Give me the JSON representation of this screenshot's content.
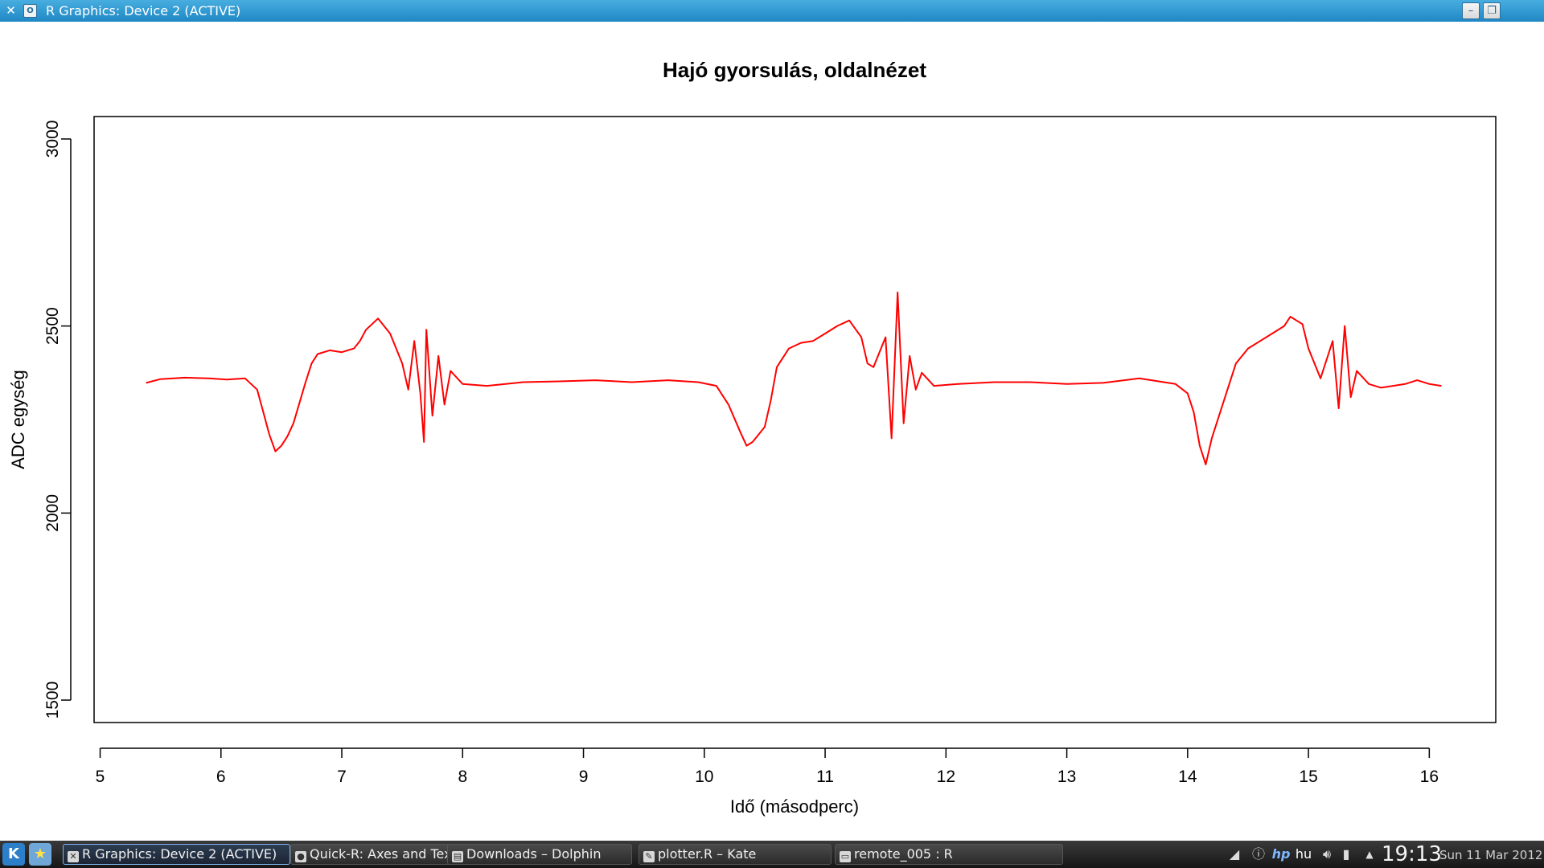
{
  "window": {
    "title": "R Graphics: Device 2 (ACTIVE)",
    "minimize_glyph": "–",
    "maximize_glyph": "❐",
    "menu_glyph": "O"
  },
  "chart_data": {
    "type": "line",
    "title": "Hajó gyorsulás, oldalnézet",
    "xlabel": "Idő (másodperc)",
    "ylabel": "ADC egység",
    "xlim": [
      4.95,
      16.55
    ],
    "ylim": [
      1440,
      3060
    ],
    "xticks": [
      5,
      6,
      7,
      8,
      9,
      10,
      11,
      12,
      13,
      14,
      15,
      16
    ],
    "yticks": [
      1500,
      2000,
      2500,
      3000
    ],
    "grid": false,
    "line_color": "#ff0000",
    "series": [
      {
        "x": [
          5.38,
          5.5,
          5.7,
          5.9,
          6.05,
          6.2,
          6.3,
          6.35,
          6.4,
          6.45,
          6.5,
          6.55,
          6.6,
          6.7,
          6.75,
          6.8,
          6.9,
          7.0,
          7.1,
          7.15,
          7.2,
          7.3,
          7.4,
          7.5,
          7.55,
          7.6,
          7.65,
          7.68,
          7.7,
          7.75,
          7.8,
          7.85,
          7.9,
          8.0,
          8.2,
          8.5,
          8.8,
          9.1,
          9.4,
          9.7,
          9.95,
          10.1,
          10.2,
          10.3,
          10.35,
          10.4,
          10.5,
          10.55,
          10.6,
          10.7,
          10.8,
          10.9,
          11.0,
          11.1,
          11.2,
          11.3,
          11.35,
          11.4,
          11.5,
          11.55,
          11.6,
          11.65,
          11.7,
          11.75,
          11.8,
          11.9,
          12.1,
          12.4,
          12.7,
          13.0,
          13.3,
          13.6,
          13.9,
          14.0,
          14.05,
          14.1,
          14.15,
          14.2,
          14.3,
          14.4,
          14.5,
          14.6,
          14.7,
          14.8,
          14.85,
          14.95,
          15.0,
          15.1,
          15.2,
          15.25,
          15.3,
          15.35,
          15.4,
          15.5,
          15.6,
          15.7,
          15.8,
          15.9,
          16.0,
          16.1
        ],
        "y": [
          2348,
          2358,
          2362,
          2360,
          2357,
          2360,
          2330,
          2270,
          2210,
          2165,
          2180,
          2205,
          2240,
          2350,
          2400,
          2425,
          2435,
          2430,
          2440,
          2460,
          2490,
          2520,
          2480,
          2400,
          2330,
          2460,
          2320,
          2190,
          2490,
          2260,
          2420,
          2290,
          2380,
          2345,
          2340,
          2350,
          2352,
          2355,
          2350,
          2355,
          2350,
          2340,
          2290,
          2215,
          2180,
          2190,
          2230,
          2300,
          2390,
          2440,
          2455,
          2460,
          2480,
          2500,
          2515,
          2470,
          2400,
          2390,
          2470,
          2200,
          2590,
          2240,
          2420,
          2330,
          2375,
          2340,
          2345,
          2350,
          2350,
          2345,
          2348,
          2360,
          2345,
          2320,
          2270,
          2180,
          2130,
          2200,
          2300,
          2400,
          2440,
          2460,
          2480,
          2500,
          2525,
          2505,
          2440,
          2360,
          2460,
          2280,
          2500,
          2310,
          2380,
          2345,
          2335,
          2340,
          2345,
          2355,
          2345,
          2340
        ]
      }
    ]
  },
  "taskbar": {
    "tasks": [
      {
        "label": "R Graphics: Device 2 (ACTIVE)",
        "active": true
      },
      {
        "label": "Quick-R: Axes and Text - Chromium",
        "active": false
      },
      {
        "label": "Downloads – Dolphin",
        "active": false
      },
      {
        "label": "plotter.R – Kate",
        "active": false
      },
      {
        "label": "remote_005 : R",
        "active": false
      }
    ],
    "keyboard_layout": "hu",
    "clock": "19:13",
    "date": "Sun 11 Mar 2012",
    "accent": "#1f87c4"
  }
}
